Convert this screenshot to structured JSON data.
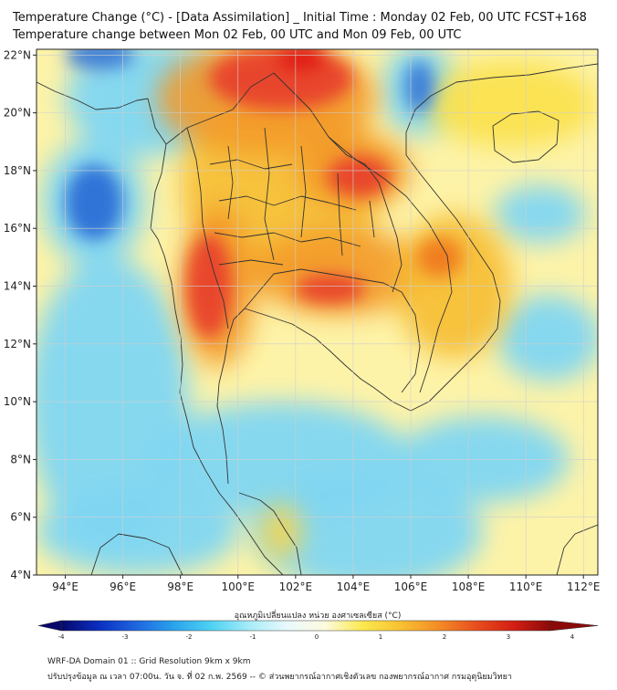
{
  "header": {
    "title_line1": "Temperature Change (°C) - [Data Assimilation] _ Initial Time : Monday 02 Feb, 00 UTC FCST+168",
    "title_line2": "Temperature change between Mon 02 Feb, 00 UTC and Mon 09 Feb, 00 UTC"
  },
  "map": {
    "lon_range": [
      93,
      112.5
    ],
    "lat_range": [
      4,
      22.2
    ],
    "lon_ticks": [
      {
        "value": 94,
        "label": "94°E"
      },
      {
        "value": 96,
        "label": "96°E"
      },
      {
        "value": 98,
        "label": "98°E"
      },
      {
        "value": 100,
        "label": "100°E"
      },
      {
        "value": 102,
        "label": "102°E"
      },
      {
        "value": 104,
        "label": "104°E"
      },
      {
        "value": 106,
        "label": "106°E"
      },
      {
        "value": 108,
        "label": "108°E"
      },
      {
        "value": 110,
        "label": "110°E"
      },
      {
        "value": 112,
        "label": "112°E"
      }
    ],
    "lat_ticks": [
      {
        "value": 4,
        "label": "4°N"
      },
      {
        "value": 6,
        "label": "6°N"
      },
      {
        "value": 8,
        "label": "8°N"
      },
      {
        "value": 10,
        "label": "10°N"
      },
      {
        "value": 12,
        "label": "12°N"
      },
      {
        "value": 14,
        "label": "14°N"
      },
      {
        "value": 16,
        "label": "16°N"
      },
      {
        "value": 18,
        "label": "18°N"
      },
      {
        "value": 20,
        "label": "20°N"
      },
      {
        "value": 22,
        "label": "22°N"
      }
    ],
    "field_blobs": [
      {
        "lon": 95.0,
        "lat": 16.9,
        "rx": 1.0,
        "ry": 1.3,
        "color": "#2d6fd6"
      },
      {
        "lon": 95.2,
        "lat": 22.0,
        "rx": 1.2,
        "ry": 0.5,
        "color": "#3a7ad8"
      },
      {
        "lon": 106.3,
        "lat": 20.9,
        "rx": 0.5,
        "ry": 0.9,
        "color": "#3a7ad8"
      },
      {
        "lon": 101.5,
        "lat": 21.2,
        "rx": 2.5,
        "ry": 1.1,
        "color": "#e8412a"
      },
      {
        "lon": 102.2,
        "lat": 21.9,
        "rx": 0.9,
        "ry": 0.5,
        "color": "#e01818"
      },
      {
        "lon": 104.2,
        "lat": 17.8,
        "rx": 1.1,
        "ry": 0.7,
        "color": "#e8412a"
      },
      {
        "lon": 99.0,
        "lat": 14.0,
        "rx": 0.8,
        "ry": 1.8,
        "color": "#e8412a"
      },
      {
        "lon": 103.2,
        "lat": 13.9,
        "rx": 1.2,
        "ry": 0.5,
        "color": "#e8412a"
      },
      {
        "lon": 107.0,
        "lat": 15.0,
        "rx": 0.8,
        "ry": 0.7,
        "color": "#f07a1c"
      }
    ],
    "blue_areas": [
      {
        "lon": 95.0,
        "lat": 16.9,
        "rx": 1.8,
        "ry": 2.2
      },
      {
        "lon": 97.0,
        "lat": 20.5,
        "rx": 3.0,
        "ry": 2.0
      },
      {
        "lon": 95.5,
        "lat": 10.0,
        "rx": 2.8,
        "ry": 5.0
      },
      {
        "lon": 101.5,
        "lat": 8.0,
        "rx": 4.5,
        "ry": 2.0
      },
      {
        "lon": 104.5,
        "lat": 5.5,
        "rx": 4.0,
        "ry": 2.0
      },
      {
        "lon": 106.3,
        "lat": 20.8,
        "rx": 1.3,
        "ry": 1.6
      },
      {
        "lon": 110.8,
        "lat": 12.2,
        "rx": 1.8,
        "ry": 1.5
      },
      {
        "lon": 110.5,
        "lat": 16.5,
        "rx": 1.6,
        "ry": 1.0
      },
      {
        "lon": 108.5,
        "lat": 8.0,
        "rx": 3.0,
        "ry": 1.5
      },
      {
        "lon": 96.5,
        "lat": 5.5,
        "rx": 3.5,
        "ry": 1.5
      }
    ],
    "warm_areas": [
      {
        "lon": 101.5,
        "lat": 17.5,
        "rx": 3.5,
        "ry": 3.5,
        "color": "#f6bd32"
      },
      {
        "lon": 101.0,
        "lat": 20.5,
        "rx": 3.8,
        "ry": 2.0,
        "color": "#f39a2a"
      },
      {
        "lon": 103.5,
        "lat": 14.5,
        "rx": 3.0,
        "ry": 1.5,
        "color": "#f39a2a"
      },
      {
        "lon": 99.3,
        "lat": 14.0,
        "rx": 1.3,
        "ry": 2.8,
        "color": "#f39a2a"
      },
      {
        "lon": 107.5,
        "lat": 14.0,
        "rx": 2.0,
        "ry": 2.5,
        "color": "#f6bd32"
      },
      {
        "lon": 109.5,
        "lat": 20.3,
        "rx": 3.0,
        "ry": 1.5,
        "color": "#fbe14a"
      },
      {
        "lon": 104.0,
        "lat": 18.0,
        "rx": 2.0,
        "ry": 1.3,
        "color": "#f39a2a"
      },
      {
        "lon": 101.5,
        "lat": 5.5,
        "rx": 0.7,
        "ry": 1.0,
        "color": "#fbd64a"
      }
    ]
  },
  "colorbar": {
    "title": "อุณหภูมิเปลี่ยนแปลง หน่วย องศาเซลเซียส (°C)",
    "min": -4,
    "max": 4,
    "tick_labels": [
      "-4",
      "-3",
      "-2",
      "-1",
      "0",
      "1",
      "2",
      "3",
      "4"
    ],
    "colors": [
      "#08086b",
      "#0a2fc0",
      "#1f66e0",
      "#2aa4ec",
      "#4fd2f3",
      "#a7ecf8",
      "#e9f9fd",
      "#fdfbe0",
      "#fbe94f",
      "#f8c232",
      "#f38e26",
      "#e8501e",
      "#d41f14",
      "#8c0a0a"
    ]
  },
  "footer": {
    "line1": "WRF-DA Domain 01 :: Grid Resolution 9km x 9km",
    "line2": "ปรับปรุงข้อมูล ณ เวลา 07:00น. วัน จ. ที่ 02 ก.พ. 2569 -- © ส่วนพยากรณ์อากาศเชิงตัวเลข กองพยากรณ์อากาศ กรมอุตุนิยมวิทยา"
  }
}
